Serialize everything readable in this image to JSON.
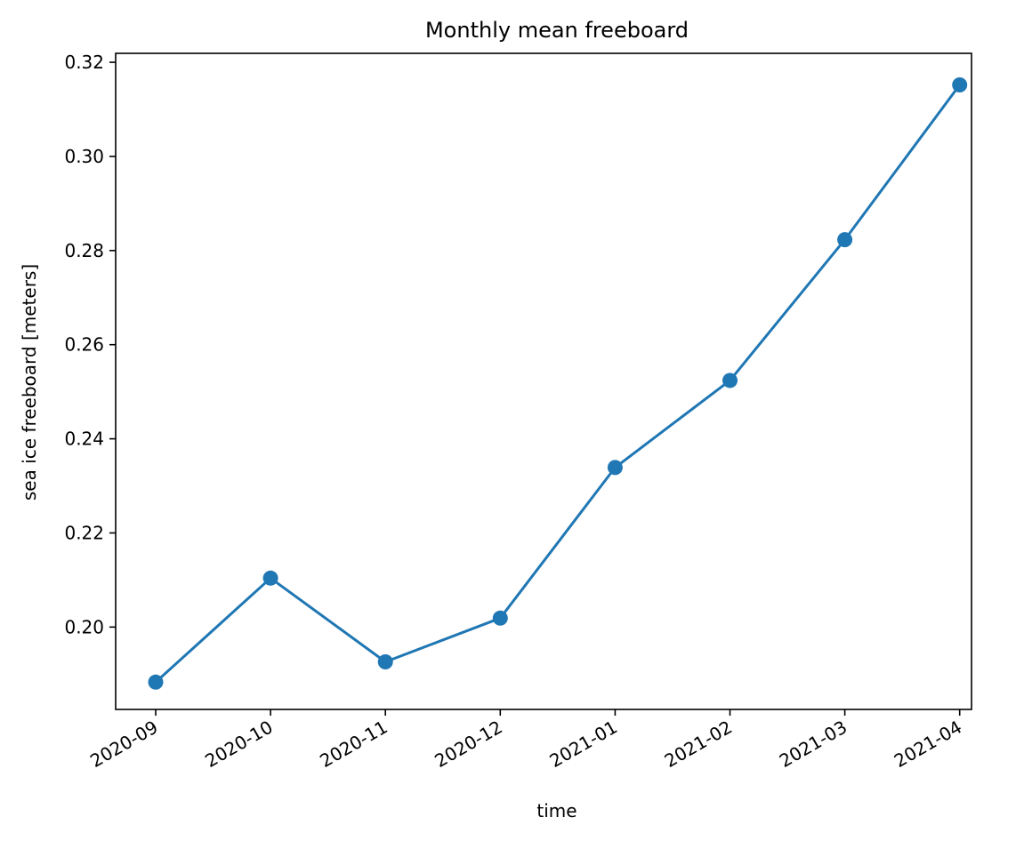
{
  "chart_data": {
    "type": "line",
    "title": "Monthly mean freeboard",
    "xlabel": "time",
    "ylabel": "sea ice freeboard [meters]",
    "categories": [
      "2020-09",
      "2020-10",
      "2020-11",
      "2020-12",
      "2021-01",
      "2021-02",
      "2021-03",
      "2021-04"
    ],
    "series": [
      {
        "name": "freeboard",
        "values": [
          0.1883,
          0.2104,
          0.1926,
          0.2019,
          0.2339,
          0.2524,
          0.2823,
          0.3152
        ],
        "color": "#1f77b4",
        "marker": "circle"
      }
    ],
    "ylim": [
      0.1825,
      0.3219
    ],
    "yticks": [
      0.2,
      0.22,
      0.24,
      0.26,
      0.28,
      0.3,
      0.32
    ],
    "ytick_labels": [
      "0.20",
      "0.22",
      "0.24",
      "0.26",
      "0.28",
      "0.30",
      "0.32"
    ],
    "grid": false
  }
}
